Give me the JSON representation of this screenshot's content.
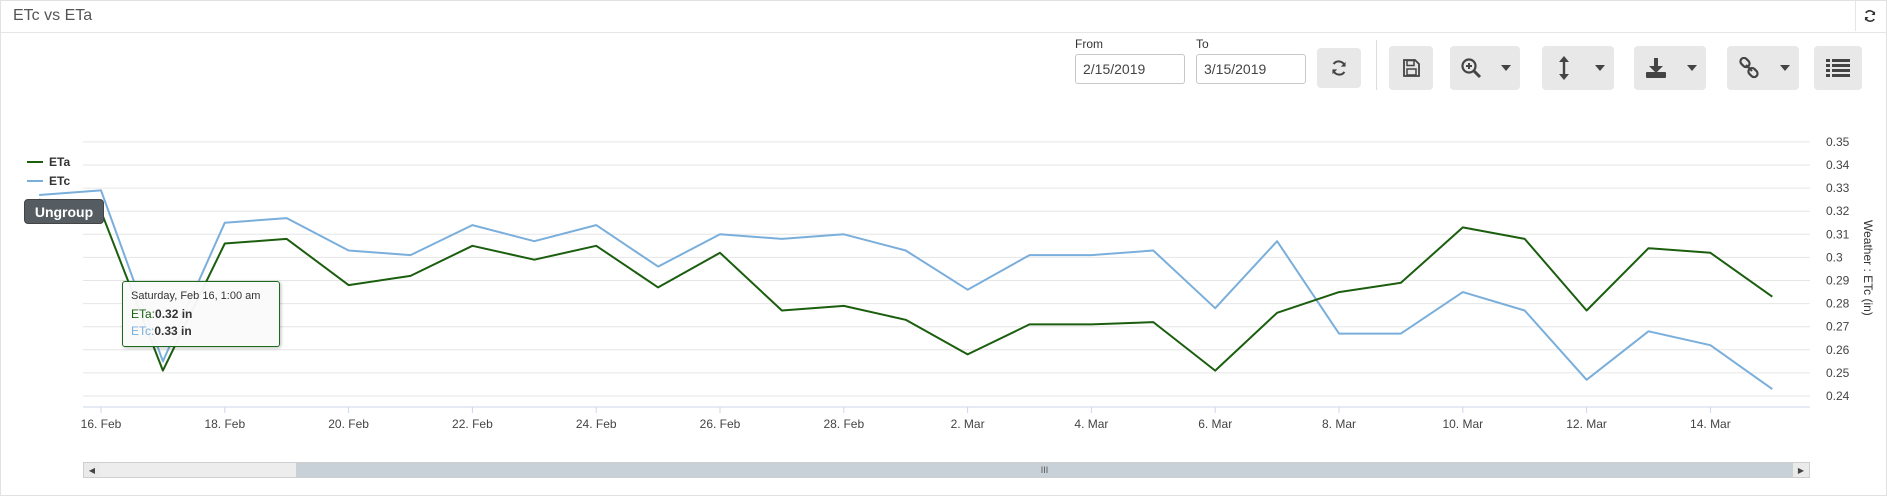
{
  "header": {
    "title": "ETc vs ETa"
  },
  "toolbar": {
    "from_label": "From",
    "from_value": "2/15/2019",
    "to_label": "To",
    "to_value": "3/15/2019"
  },
  "ungroup_label": "Ungroup",
  "tooltip": {
    "date": "Saturday, Feb 16, 1:00 am",
    "eta_label": "ETa:",
    "eta_value": "0.32 in",
    "etc_label": "ETc:",
    "etc_value": "0.33 in"
  },
  "scrollbar_grip": "III",
  "colors": {
    "eta": "#1a5e0e",
    "etc": "#7aaedb"
  },
  "chart_data": {
    "type": "line",
    "ylabel": "Weather : ETc (in)",
    "ylim": [
      0.235,
      0.35
    ],
    "yticks": [
      "0.24",
      "0.25",
      "0.26",
      "0.27",
      "0.28",
      "0.29",
      "0.3",
      "0.31",
      "0.32",
      "0.33",
      "0.34",
      "0.35"
    ],
    "xtick_labels": [
      "16. Feb",
      "18. Feb",
      "20. Feb",
      "22. Feb",
      "24. Feb",
      "26. Feb",
      "28. Feb",
      "2. Mar",
      "4. Mar",
      "6. Mar",
      "8. Mar",
      "10. Mar",
      "12. Mar",
      "14. Mar"
    ],
    "x": [
      "Feb 15",
      "Feb 16",
      "Feb 17",
      "Feb 18",
      "Feb 19",
      "Feb 20",
      "Feb 21",
      "Feb 22",
      "Feb 23",
      "Feb 24",
      "Feb 25",
      "Feb 26",
      "Feb 27",
      "Feb 28",
      "Mar 1",
      "Mar 2",
      "Mar 3",
      "Mar 4",
      "Mar 5",
      "Mar 6",
      "Mar 7",
      "Mar 8",
      "Mar 9",
      "Mar 10",
      "Mar 11",
      "Mar 12",
      "Mar 13",
      "Mar 14",
      "Mar 15"
    ],
    "legend": "top-left",
    "grid": true,
    "series": [
      {
        "name": "ETa",
        "color": "#1a5e0e",
        "values": [
          0.325,
          0.32,
          0.251,
          0.306,
          0.308,
          0.288,
          0.292,
          0.305,
          0.299,
          0.305,
          0.287,
          0.302,
          0.277,
          0.279,
          0.273,
          0.258,
          0.271,
          0.271,
          0.272,
          0.251,
          0.276,
          0.285,
          0.289,
          0.313,
          0.308,
          0.277,
          0.304,
          0.302,
          0.283
        ]
      },
      {
        "name": "ETc",
        "color": "#7aaedb",
        "values": [
          0.327,
          0.329,
          0.255,
          0.315,
          0.317,
          0.303,
          0.301,
          0.314,
          0.307,
          0.314,
          0.296,
          0.31,
          0.308,
          0.31,
          0.303,
          0.286,
          0.301,
          0.301,
          0.303,
          0.278,
          0.307,
          0.267,
          0.267,
          0.285,
          0.277,
          0.247,
          0.268,
          0.262,
          0.243
        ]
      }
    ]
  }
}
